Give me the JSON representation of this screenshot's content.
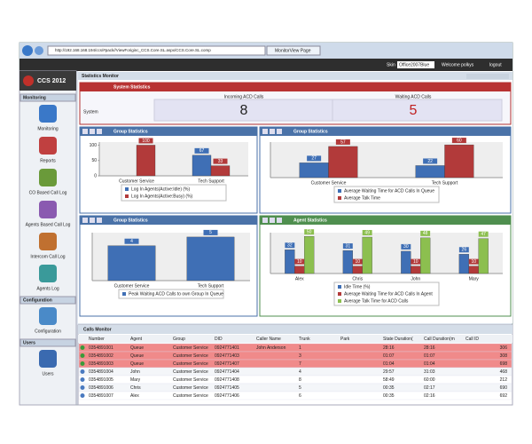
{
  "browser": {
    "address": "http://192.168.168.194/ccs/#pack//ViewForiginc_CCS.Core.SL.aspx/CCS.Core.SL.comp",
    "tab": "MonitorView Page"
  },
  "header": {
    "skin_label": "Skin",
    "skin_value": "Office2007Blue",
    "welcome": "Welcome polkys",
    "logout": "logout"
  },
  "sidebar": {
    "logo": "CCS 2012",
    "sections": [
      {
        "title": "Monitoring",
        "items": [
          "Monitoring",
          "Reports",
          "CO Based Call Log",
          "Agents Based Call Log",
          "Intercom Call Log",
          "Agents Log"
        ]
      },
      {
        "title": "Configuration",
        "items": [
          "Configuration"
        ]
      },
      {
        "title": "Users",
        "items": [
          "Users"
        ]
      }
    ]
  },
  "monitor_title": "Statistics Monitor",
  "system": {
    "title": "System Statistics",
    "row_label": "System",
    "columns": [
      {
        "label": "Incoming ACD Calls",
        "value": 8
      },
      {
        "label": "Waiting ACD Calls",
        "value": 5
      }
    ]
  },
  "chart_data": [
    {
      "type": "bar",
      "title": "Group Statistics",
      "categories": [
        "Customer Service",
        "Tech Support"
      ],
      "ylim": [
        0,
        110
      ],
      "yticks": [
        0,
        50,
        100
      ],
      "series": [
        {
          "name": "Log In Agents(Active:Idle) (%)",
          "color": "#3f6fb5",
          "values": [
            null,
            67
          ]
        },
        {
          "name": "Log In Agents(Active:Busy) (%)",
          "color": "#b23a3a",
          "values": [
            100,
            33
          ]
        }
      ]
    },
    {
      "type": "bar",
      "title": "Group Statistics",
      "categories": [
        "Customer Service",
        "Tech Support"
      ],
      "ylim": [
        0,
        65
      ],
      "series": [
        {
          "name": "Average Waiting Time for ACD Calls In Queue",
          "color": "#3f6fb5",
          "values": [
            27,
            22
          ]
        },
        {
          "name": "Average Talk Time",
          "color": "#b23a3a",
          "values": [
            57,
            60
          ]
        }
      ]
    },
    {
      "type": "bar",
      "title": "Group Statistics",
      "categories": [
        "Customer Service",
        "Tech Support"
      ],
      "ylim": [
        0,
        5.5
      ],
      "series": [
        {
          "name": "Peak Waiting ACD Calls to own Group In Queue",
          "color": "#3f6fb5",
          "values": [
            4,
            5
          ]
        }
      ]
    },
    {
      "type": "bar",
      "title": "Agent Statistics",
      "categories": [
        "Alex",
        "Chris",
        "John",
        "Mary"
      ],
      "ylim": [
        0,
        55
      ],
      "series": [
        {
          "name": "Idle Time (%)",
          "color": "#3f6fb5",
          "values": [
            32,
            31,
            30,
            26
          ]
        },
        {
          "name": "Average Waiting Time for ACD Calls In Agent",
          "color": "#b23a3a",
          "values": [
            10,
            10,
            10,
            10
          ]
        },
        {
          "name": "Average Talk Time for ACD Calls",
          "color": "#8cbf4f",
          "values": [
            50,
            49,
            48,
            47
          ]
        }
      ]
    }
  ],
  "table": {
    "title": "Calls Monitor",
    "columns": [
      "Number",
      "Agent",
      "Group",
      "DID",
      "Caller Name",
      "Trunk",
      "Park",
      "State Duration(",
      "Call Duration(m",
      "Call ID"
    ],
    "rows": [
      [
        "0354891001",
        "Queue",
        "Customer Service",
        "0924771401",
        "John Anderson",
        "1",
        null,
        "28:16",
        "28:16",
        "306"
      ],
      [
        "0354891002",
        "Queue",
        "Customer Service",
        "0924771403",
        null,
        "3",
        null,
        "01:07",
        "01:07",
        "308"
      ],
      [
        "0354891003",
        "Queue",
        "Customer Service",
        "0924771407",
        null,
        "7",
        null,
        "01:04",
        "01:04",
        "698"
      ],
      [
        "0354891004",
        "John",
        "Customer Service",
        "0924771404",
        null,
        "4",
        null,
        "29:57",
        "31:03",
        "468"
      ],
      [
        "0354891005",
        "Mary",
        "Customer Service",
        "0924771408",
        null,
        "8",
        null,
        "58:49",
        "60:00",
        "212"
      ],
      [
        "0354891006",
        "Chris",
        "Customer Service",
        "0924771405",
        null,
        "5",
        null,
        "00:35",
        "02:17",
        "690"
      ],
      [
        "0354891007",
        "Alex",
        "Customer Service",
        "0924771406",
        null,
        "6",
        null,
        "00:35",
        "02:16",
        "692"
      ]
    ]
  }
}
